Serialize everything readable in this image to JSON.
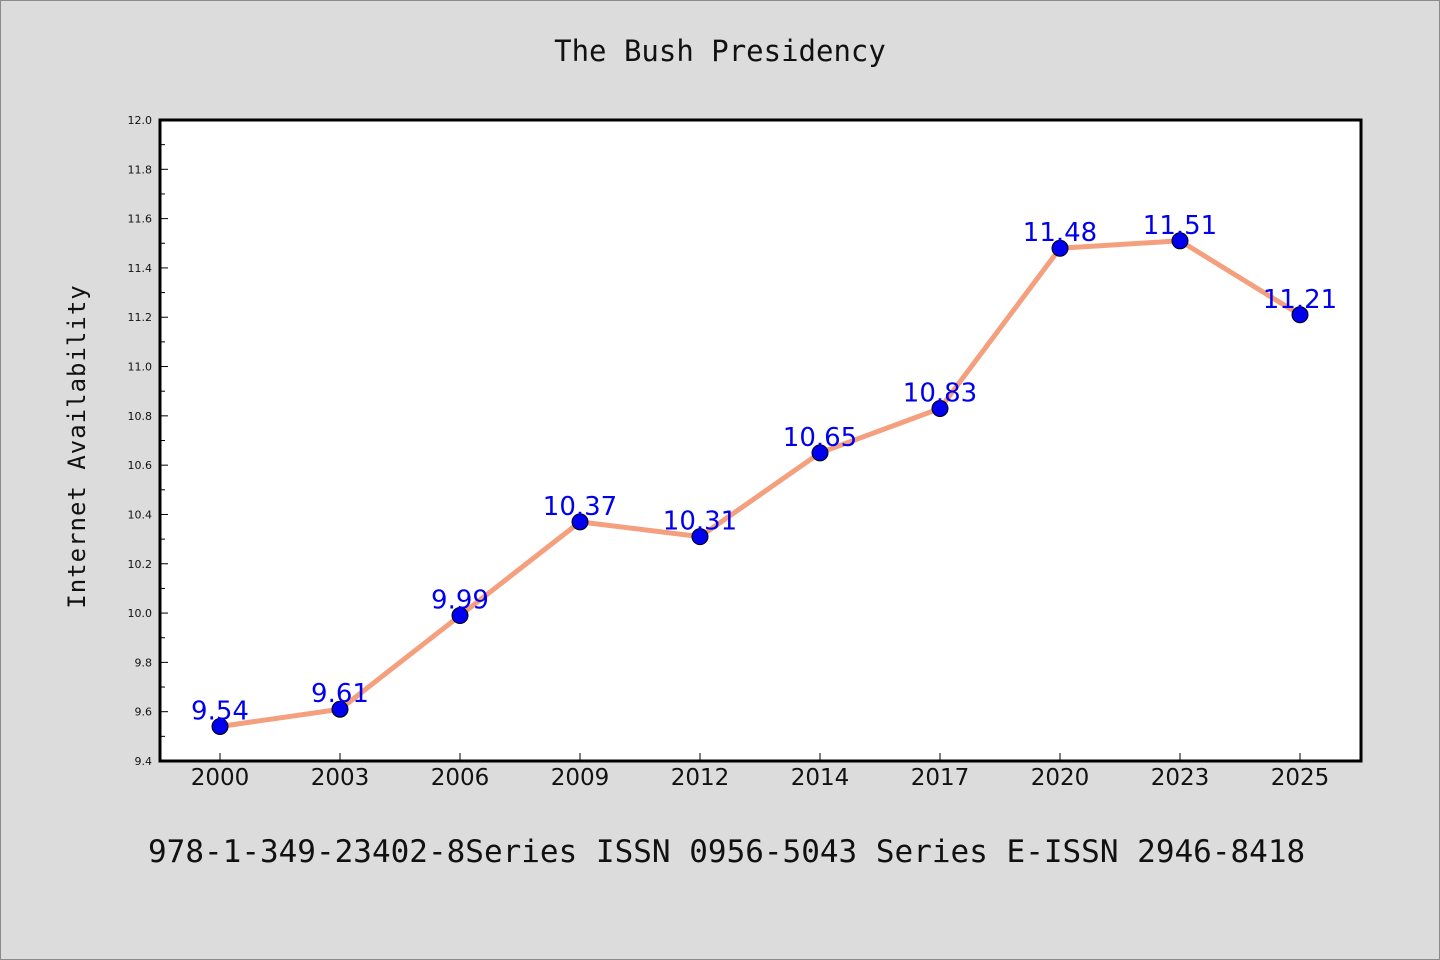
{
  "chart_data": {
    "type": "line",
    "title": "The Bush Presidency",
    "xlabel": "",
    "ylabel": "Internet Availability",
    "categories": [
      "2000",
      "2003",
      "2006",
      "2009",
      "2012",
      "2014",
      "2017",
      "2020",
      "2023",
      "2025"
    ],
    "series": [
      {
        "values": [
          9.54,
          9.61,
          9.99,
          10.37,
          10.31,
          10.65,
          10.83,
          11.48,
          11.51,
          11.21
        ],
        "labels": [
          "9.54",
          "9.61",
          "9.99",
          "10.37",
          "10.31",
          "10.65",
          "10.83",
          "11.48",
          "11.51",
          "11.21"
        ],
        "line_color": "#f4a07e",
        "marker_color": "#0000ee",
        "label_color": "#0000ee"
      }
    ],
    "ylim": [
      9.4,
      12.0
    ],
    "yticks": [
      "9.4",
      "9.6",
      "9.8",
      "10.0",
      "10.2",
      "10.4",
      "10.6",
      "10.8",
      "11.0",
      "11.2",
      "11.4",
      "11.6",
      "11.8",
      "12.0"
    ],
    "grid": false,
    "legend": "none"
  },
  "footer": {
    "text": "978-1-349-23402-8Series ISSN 0956-5043 Series E-ISSN 2946-8418"
  },
  "colors": {
    "background": "#dcdcdc",
    "plot_area": "#ffffff"
  }
}
